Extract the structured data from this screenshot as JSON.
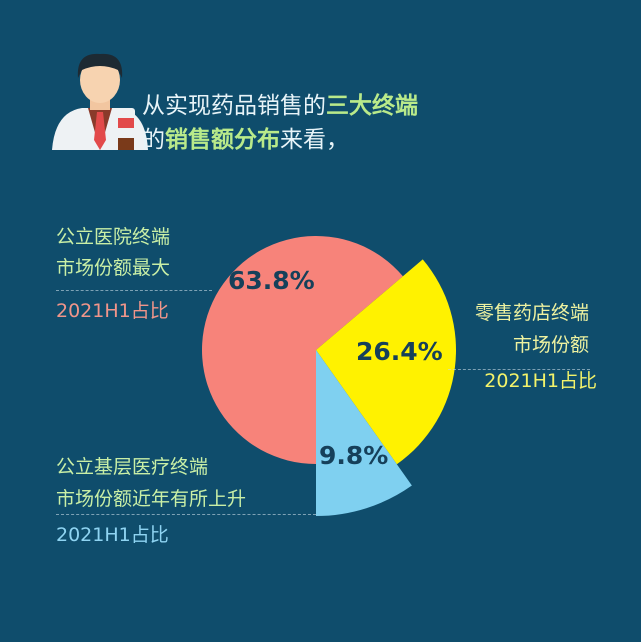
{
  "header": {
    "line1_prefix": "从实现药品销售的",
    "line1_highlight": "三大终端",
    "line2_prefix": "的",
    "line2_highlight": "销售额分布",
    "line2_suffix": "来看，"
  },
  "chart_data": {
    "type": "pie",
    "slices": [
      {
        "label_line1": "公立医院终端",
        "label_line2": "市场份额最大",
        "sublabel": "2021H1占比",
        "value": 63.8,
        "value_label": "63.8%",
        "color": "#f7837a"
      },
      {
        "label_line1": "零售药店终端",
        "label_line2": "市场份额",
        "sublabel": "2021H1占比",
        "value": 26.4,
        "value_label": "26.4%",
        "color": "#fff200"
      },
      {
        "label_line1": "公立基层医疗终端",
        "label_line2": "市场份额近年有所上升",
        "sublabel": "2021H1占比",
        "value": 9.8,
        "value_label": "9.8%",
        "color": "#7fd0f0"
      }
    ]
  },
  "colors": {
    "background": "#0f4d6c",
    "highlight": "#b9ea8a"
  }
}
